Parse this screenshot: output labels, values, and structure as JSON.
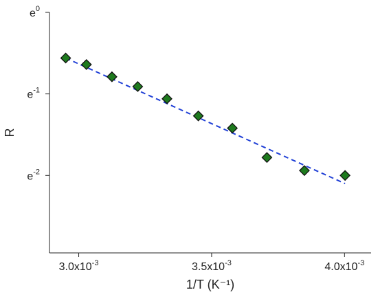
{
  "chart_data": {
    "type": "scatter",
    "xlabel": "1/T (K⁻¹)",
    "ylabel": "R",
    "xlim": [
      0.00289,
      0.0041
    ],
    "ylim": [
      -2.95,
      0.0
    ],
    "y_scale": "natural-log",
    "x_ticks": [
      {
        "value": 0.003,
        "mantissa": "3.0x10",
        "exponent": "-3"
      },
      {
        "value": 0.0035,
        "mantissa": "3.5x10",
        "exponent": "-3"
      },
      {
        "value": 0.004,
        "mantissa": "4.0x10",
        "exponent": "-3"
      }
    ],
    "y_ticks": [
      {
        "value": 0,
        "base": "e",
        "exponent": "0"
      },
      {
        "value": -1,
        "base": "e",
        "exponent": "-1"
      },
      {
        "value": -2,
        "base": "e",
        "exponent": "-2"
      }
    ],
    "series": [
      {
        "marker": "diamond",
        "color": "#1e7a1e",
        "edge_color": "#111111",
        "x": [
          0.002951,
          0.003029,
          0.003125,
          0.003222,
          0.003332,
          0.00345,
          0.003578,
          0.003708,
          0.003849,
          0.004002
        ],
        "ln_y": [
          -0.56,
          -0.64,
          -0.79,
          -0.91,
          -1.06,
          -1.27,
          -1.42,
          -1.78,
          -1.94,
          -2.0
        ]
      },
      {
        "type": "line",
        "style": "dashed",
        "color": "#1f3fd6",
        "x": [
          0.002951,
          0.004002
        ],
        "ln_y": [
          -0.56,
          -2.1
        ]
      }
    ],
    "grid": false,
    "legend": "none"
  }
}
